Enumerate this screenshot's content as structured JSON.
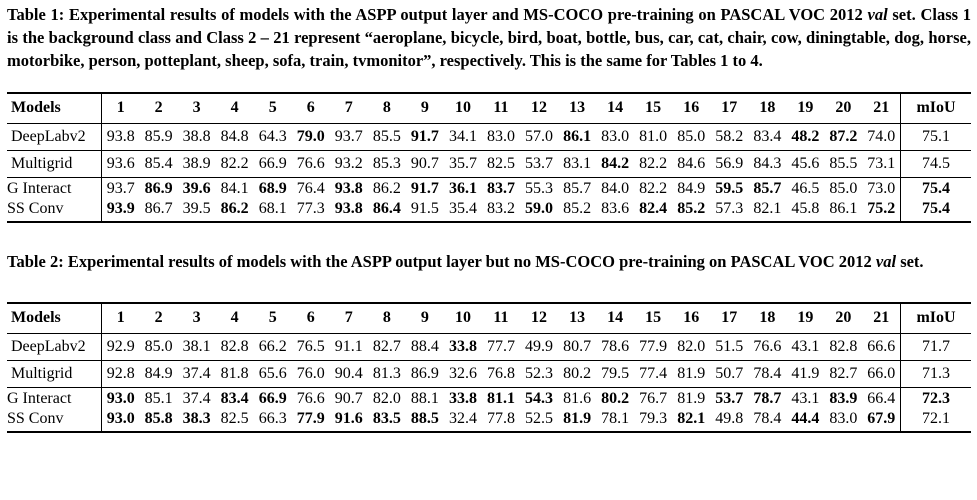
{
  "table1": {
    "caption": {
      "prefix": "Table 1: Experimental results of models with the ASPP output layer and MS-COCO pre-training on PASCAL VOC 2012 ",
      "italic_word": "val",
      "suffix": " set. Class 1 is the background class and Class 2 – 21 represent “aeroplane, bicycle, bird, boat, bottle, bus, car, cat, chair, cow, diningtable, dog, horse, motorbike, person, potteplant, sheep, sofa, train, tvmonitor”, respectively. This is the same for Tables 1 to 4."
    },
    "headers": [
      "Models",
      "1",
      "2",
      "3",
      "4",
      "5",
      "6",
      "7",
      "8",
      "9",
      "10",
      "11",
      "12",
      "13",
      "14",
      "15",
      "16",
      "17",
      "18",
      "19",
      "20",
      "21",
      "mIoU"
    ],
    "rows": [
      {
        "model": "DeepLabv2",
        "values": [
          "93.8",
          "85.9",
          "38.8",
          "84.8",
          "64.3",
          "79.0",
          "93.7",
          "85.5",
          "91.7",
          "34.1",
          "83.0",
          "57.0",
          "86.1",
          "83.0",
          "81.0",
          "85.0",
          "58.2",
          "83.4",
          "48.2",
          "87.2",
          "74.0",
          "75.1"
        ],
        "bold": [
          5,
          8,
          12,
          18,
          19
        ],
        "sep": true
      },
      {
        "model": "Multigrid",
        "values": [
          "93.6",
          "85.4",
          "38.9",
          "82.2",
          "66.9",
          "76.6",
          "93.2",
          "85.3",
          "90.7",
          "35.7",
          "82.5",
          "53.7",
          "83.1",
          "84.2",
          "82.2",
          "84.6",
          "56.9",
          "84.3",
          "45.6",
          "85.5",
          "73.1",
          "74.5"
        ],
        "bold": [
          13
        ],
        "sep": true
      },
      {
        "model": "G Interact",
        "values": [
          "93.7",
          "86.9",
          "39.6",
          "84.1",
          "68.9",
          "76.4",
          "93.8",
          "86.2",
          "91.7",
          "36.1",
          "83.7",
          "55.3",
          "85.7",
          "84.0",
          "82.2",
          "84.9",
          "59.5",
          "85.7",
          "46.5",
          "85.0",
          "73.0",
          "75.4"
        ],
        "bold": [
          1,
          2,
          4,
          6,
          8,
          9,
          10,
          16,
          17,
          21
        ],
        "sep": false
      },
      {
        "model": "SS Conv",
        "values": [
          "93.9",
          "86.7",
          "39.5",
          "86.2",
          "68.1",
          "77.3",
          "93.8",
          "86.4",
          "91.5",
          "35.4",
          "83.2",
          "59.0",
          "85.2",
          "83.6",
          "82.4",
          "85.2",
          "57.3",
          "82.1",
          "45.8",
          "86.1",
          "75.2",
          "75.4"
        ],
        "bold": [
          0,
          3,
          6,
          7,
          11,
          14,
          15,
          20,
          21
        ],
        "sep": false
      }
    ]
  },
  "table2": {
    "caption": {
      "prefix": "Table 2: Experimental results of models with the ASPP output layer but no MS-COCO pre-training on PASCAL VOC 2012 ",
      "italic_word": "val",
      "suffix": " set."
    },
    "headers": [
      "Models",
      "1",
      "2",
      "3",
      "4",
      "5",
      "6",
      "7",
      "8",
      "9",
      "10",
      "11",
      "12",
      "13",
      "14",
      "15",
      "16",
      "17",
      "18",
      "19",
      "20",
      "21",
      "mIoU"
    ],
    "rows": [
      {
        "model": "DeepLabv2",
        "values": [
          "92.9",
          "85.0",
          "38.1",
          "82.8",
          "66.2",
          "76.5",
          "91.1",
          "82.7",
          "88.4",
          "33.8",
          "77.7",
          "49.9",
          "80.7",
          "78.6",
          "77.9",
          "82.0",
          "51.5",
          "76.6",
          "43.1",
          "82.8",
          "66.6",
          "71.7"
        ],
        "bold": [
          9
        ],
        "sep": true
      },
      {
        "model": "Multigrid",
        "values": [
          "92.8",
          "84.9",
          "37.4",
          "81.8",
          "65.6",
          "76.0",
          "90.4",
          "81.3",
          "86.9",
          "32.6",
          "76.8",
          "52.3",
          "80.2",
          "79.5",
          "77.4",
          "81.9",
          "50.7",
          "78.4",
          "41.9",
          "82.7",
          "66.0",
          "71.3"
        ],
        "bold": [],
        "sep": true
      },
      {
        "model": "G Interact",
        "values": [
          "93.0",
          "85.1",
          "37.4",
          "83.4",
          "66.9",
          "76.6",
          "90.7",
          "82.0",
          "88.1",
          "33.8",
          "81.1",
          "54.3",
          "81.6",
          "80.2",
          "76.7",
          "81.9",
          "53.7",
          "78.7",
          "43.1",
          "83.9",
          "66.4",
          "72.3"
        ],
        "bold": [
          0,
          3,
          4,
          9,
          10,
          11,
          13,
          16,
          17,
          19,
          21
        ],
        "sep": false
      },
      {
        "model": "SS Conv",
        "values": [
          "93.0",
          "85.8",
          "38.3",
          "82.5",
          "66.3",
          "77.9",
          "91.6",
          "83.5",
          "88.5",
          "32.4",
          "77.8",
          "52.5",
          "81.9",
          "78.1",
          "79.3",
          "82.1",
          "49.8",
          "78.4",
          "44.4",
          "83.0",
          "67.9",
          "72.1"
        ],
        "bold": [
          0,
          1,
          2,
          5,
          6,
          7,
          8,
          12,
          15,
          18,
          20
        ],
        "sep": false
      }
    ]
  }
}
